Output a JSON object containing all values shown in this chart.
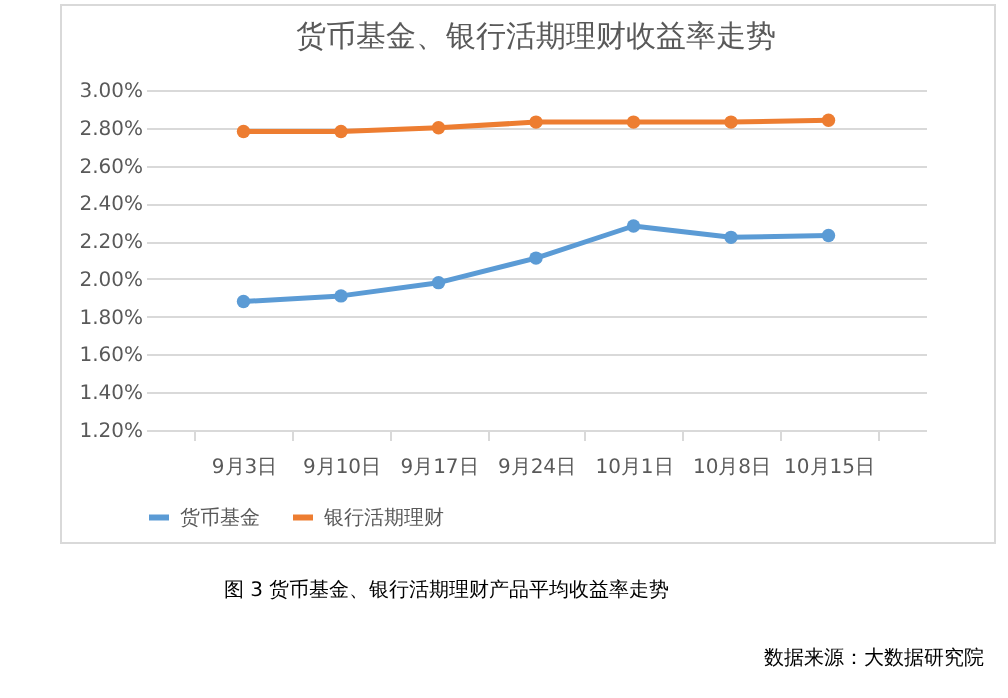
{
  "chart_data": {
    "type": "line",
    "title": "货币基金、银行活期理财收益率走势",
    "categories": [
      "9月3日",
      "9月10日",
      "9月17日",
      "9月24日",
      "10月1日",
      "10月8日",
      "10月15日"
    ],
    "series": [
      {
        "name": "货币基金",
        "color": "#5b9bd5",
        "values": [
          1.88,
          1.91,
          1.98,
          2.11,
          2.28,
          2.22,
          2.23
        ]
      },
      {
        "name": "银行活期理财",
        "color": "#ed7d31",
        "values": [
          2.78,
          2.78,
          2.8,
          2.83,
          2.83,
          2.83,
          2.84
        ]
      }
    ],
    "ylim": [
      1.2,
      3.0
    ],
    "yticks": [
      {
        "value": 1.2,
        "label": "1.20%"
      },
      {
        "value": 1.4,
        "label": "1.40%"
      },
      {
        "value": 1.6,
        "label": "1.60%"
      },
      {
        "value": 1.8,
        "label": "1.80%"
      },
      {
        "value": 2.0,
        "label": "2.00%"
      },
      {
        "value": 2.2,
        "label": "2.20%"
      },
      {
        "value": 2.4,
        "label": "2.40%"
      },
      {
        "value": 2.6,
        "label": "2.60%"
      },
      {
        "value": 2.8,
        "label": "2.80%"
      },
      {
        "value": 3.0,
        "label": "3.00%"
      }
    ],
    "grid": "y",
    "legend": "bottom",
    "marker": "circle",
    "line_style": "solid",
    "annotations": [
      "图 3 货币基金、银行活期理财产品平均收益率走势",
      "数据来源：大数据研究院"
    ]
  }
}
